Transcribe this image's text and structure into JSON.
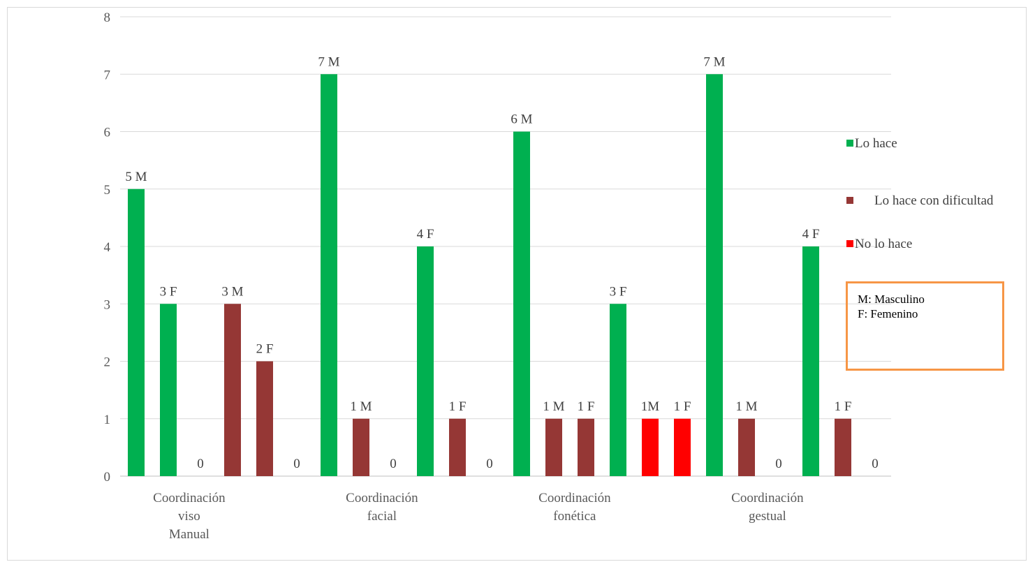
{
  "chart_data": {
    "type": "bar",
    "title": "",
    "xlabel": "",
    "ylabel": "",
    "ylim": [
      0,
      8
    ],
    "yticks": [
      "0",
      "1",
      "2",
      "3",
      "4",
      "5",
      "6",
      "7",
      "8"
    ],
    "grid": true,
    "legend_position": "right",
    "categories": [
      {
        "label_lines": [
          "Coordinación",
          "viso",
          "Manual"
        ]
      },
      {
        "label_lines": [
          "Coordinación",
          "facial"
        ]
      },
      {
        "label_lines": [
          "Coordinación",
          "fonética"
        ]
      },
      {
        "label_lines": [
          "Coordinación",
          "gestual"
        ]
      }
    ],
    "series": [
      {
        "name": "Lo hace",
        "color": "#00b050"
      },
      {
        "name": "Lo hace con dificultad",
        "color": "#953735"
      },
      {
        "name": "No lo hace",
        "color": "#ff0000"
      }
    ],
    "bars": [
      {
        "value": 5,
        "label": "5 M",
        "series": 0
      },
      {
        "value": 3,
        "label": "3 F",
        "series": 0
      },
      {
        "value": 0,
        "label": "0",
        "series": 0
      },
      {
        "value": 3,
        "label": "3 M",
        "series": 1
      },
      {
        "value": 2,
        "label": "2 F",
        "series": 1
      },
      {
        "value": 0,
        "label": "0",
        "series": 1
      },
      {
        "value": 7,
        "label": "7 M",
        "series": 0
      },
      {
        "value": 1,
        "label": "1 M",
        "series": 1
      },
      {
        "value": 0,
        "label": "0",
        "series": 2
      },
      {
        "value": 4,
        "label": "4 F",
        "series": 0
      },
      {
        "value": 1,
        "label": "1 F",
        "series": 1
      },
      {
        "value": 0,
        "label": "0",
        "series": 2
      },
      {
        "value": 6,
        "label": "6 M",
        "series": 0
      },
      {
        "value": 1,
        "label": "1 M",
        "series": 1
      },
      {
        "value": 1,
        "label": "1 F",
        "series": 1
      },
      {
        "value": 3,
        "label": "3 F",
        "series": 0
      },
      {
        "value": 1,
        "label": "1M",
        "series": 2
      },
      {
        "value": 1,
        "label": "1 F",
        "series": 2
      },
      {
        "value": 7,
        "label": "7 M",
        "series": 0
      },
      {
        "value": 1,
        "label": "1 M",
        "series": 1
      },
      {
        "value": 0,
        "label": "0",
        "series": 2
      },
      {
        "value": 4,
        "label": "4 F",
        "series": 0
      },
      {
        "value": 1,
        "label": "1 F",
        "series": 1
      },
      {
        "value": 0,
        "label": "0",
        "series": 2
      }
    ]
  },
  "note": {
    "line1": "M: Masculino",
    "line2": "F: Femenino"
  }
}
